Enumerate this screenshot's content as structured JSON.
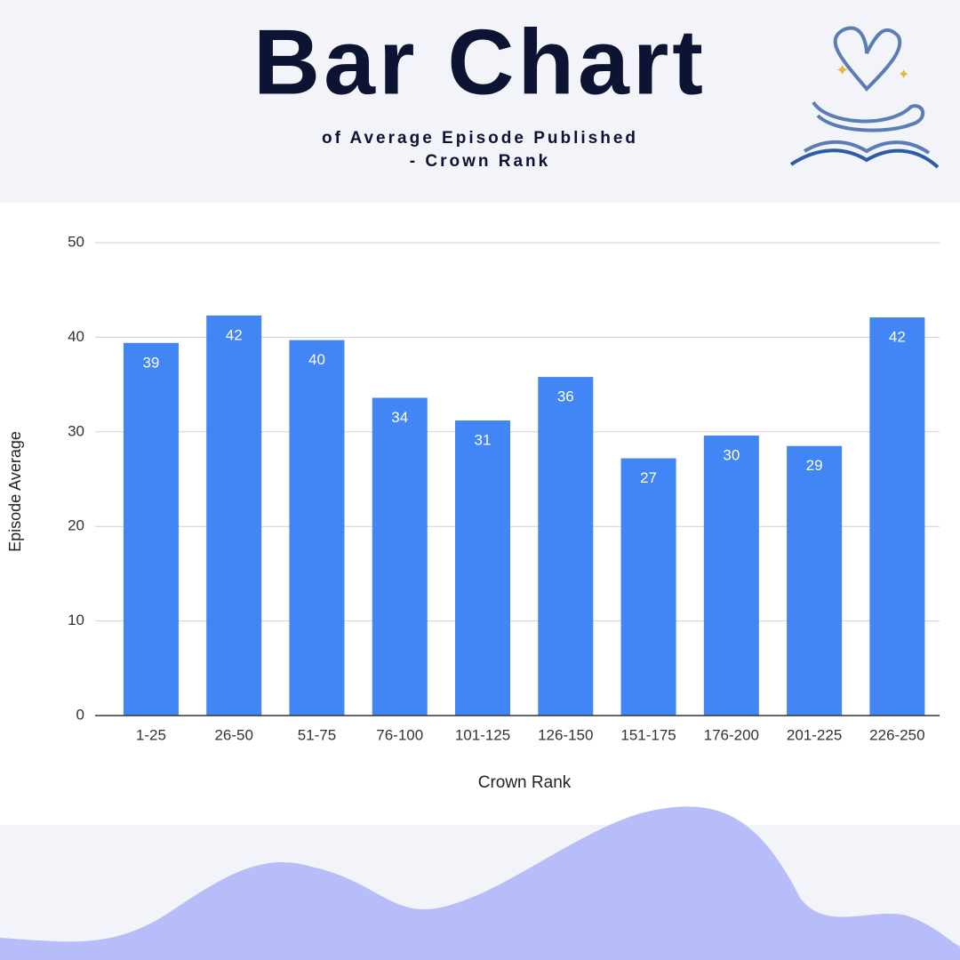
{
  "chart_data": {
    "type": "bar",
    "title": "Bar Chart",
    "subtitle": [
      "of Average Episode Published",
      "- Crown Rank"
    ],
    "x_label": "Crown Rank",
    "y_label": "Episode Average",
    "categories": [
      "1-25",
      "26-50",
      "51-75",
      "76-100",
      "101-125",
      "126-150",
      "151-175",
      "176-200",
      "201-225",
      "226-250"
    ],
    "values": [
      39.4,
      42.3,
      39.7,
      33.6,
      31.2,
      35.8,
      27.2,
      29.6,
      28.5,
      42.1
    ],
    "value_labels": [
      "39",
      "42",
      "40",
      "34",
      "31",
      "36",
      "27",
      "30",
      "29",
      "42"
    ],
    "color": "#4285f4",
    "ylim": [
      0,
      50
    ],
    "yticks": [
      0,
      10,
      20,
      30,
      40,
      50
    ],
    "grid": true
  }
}
